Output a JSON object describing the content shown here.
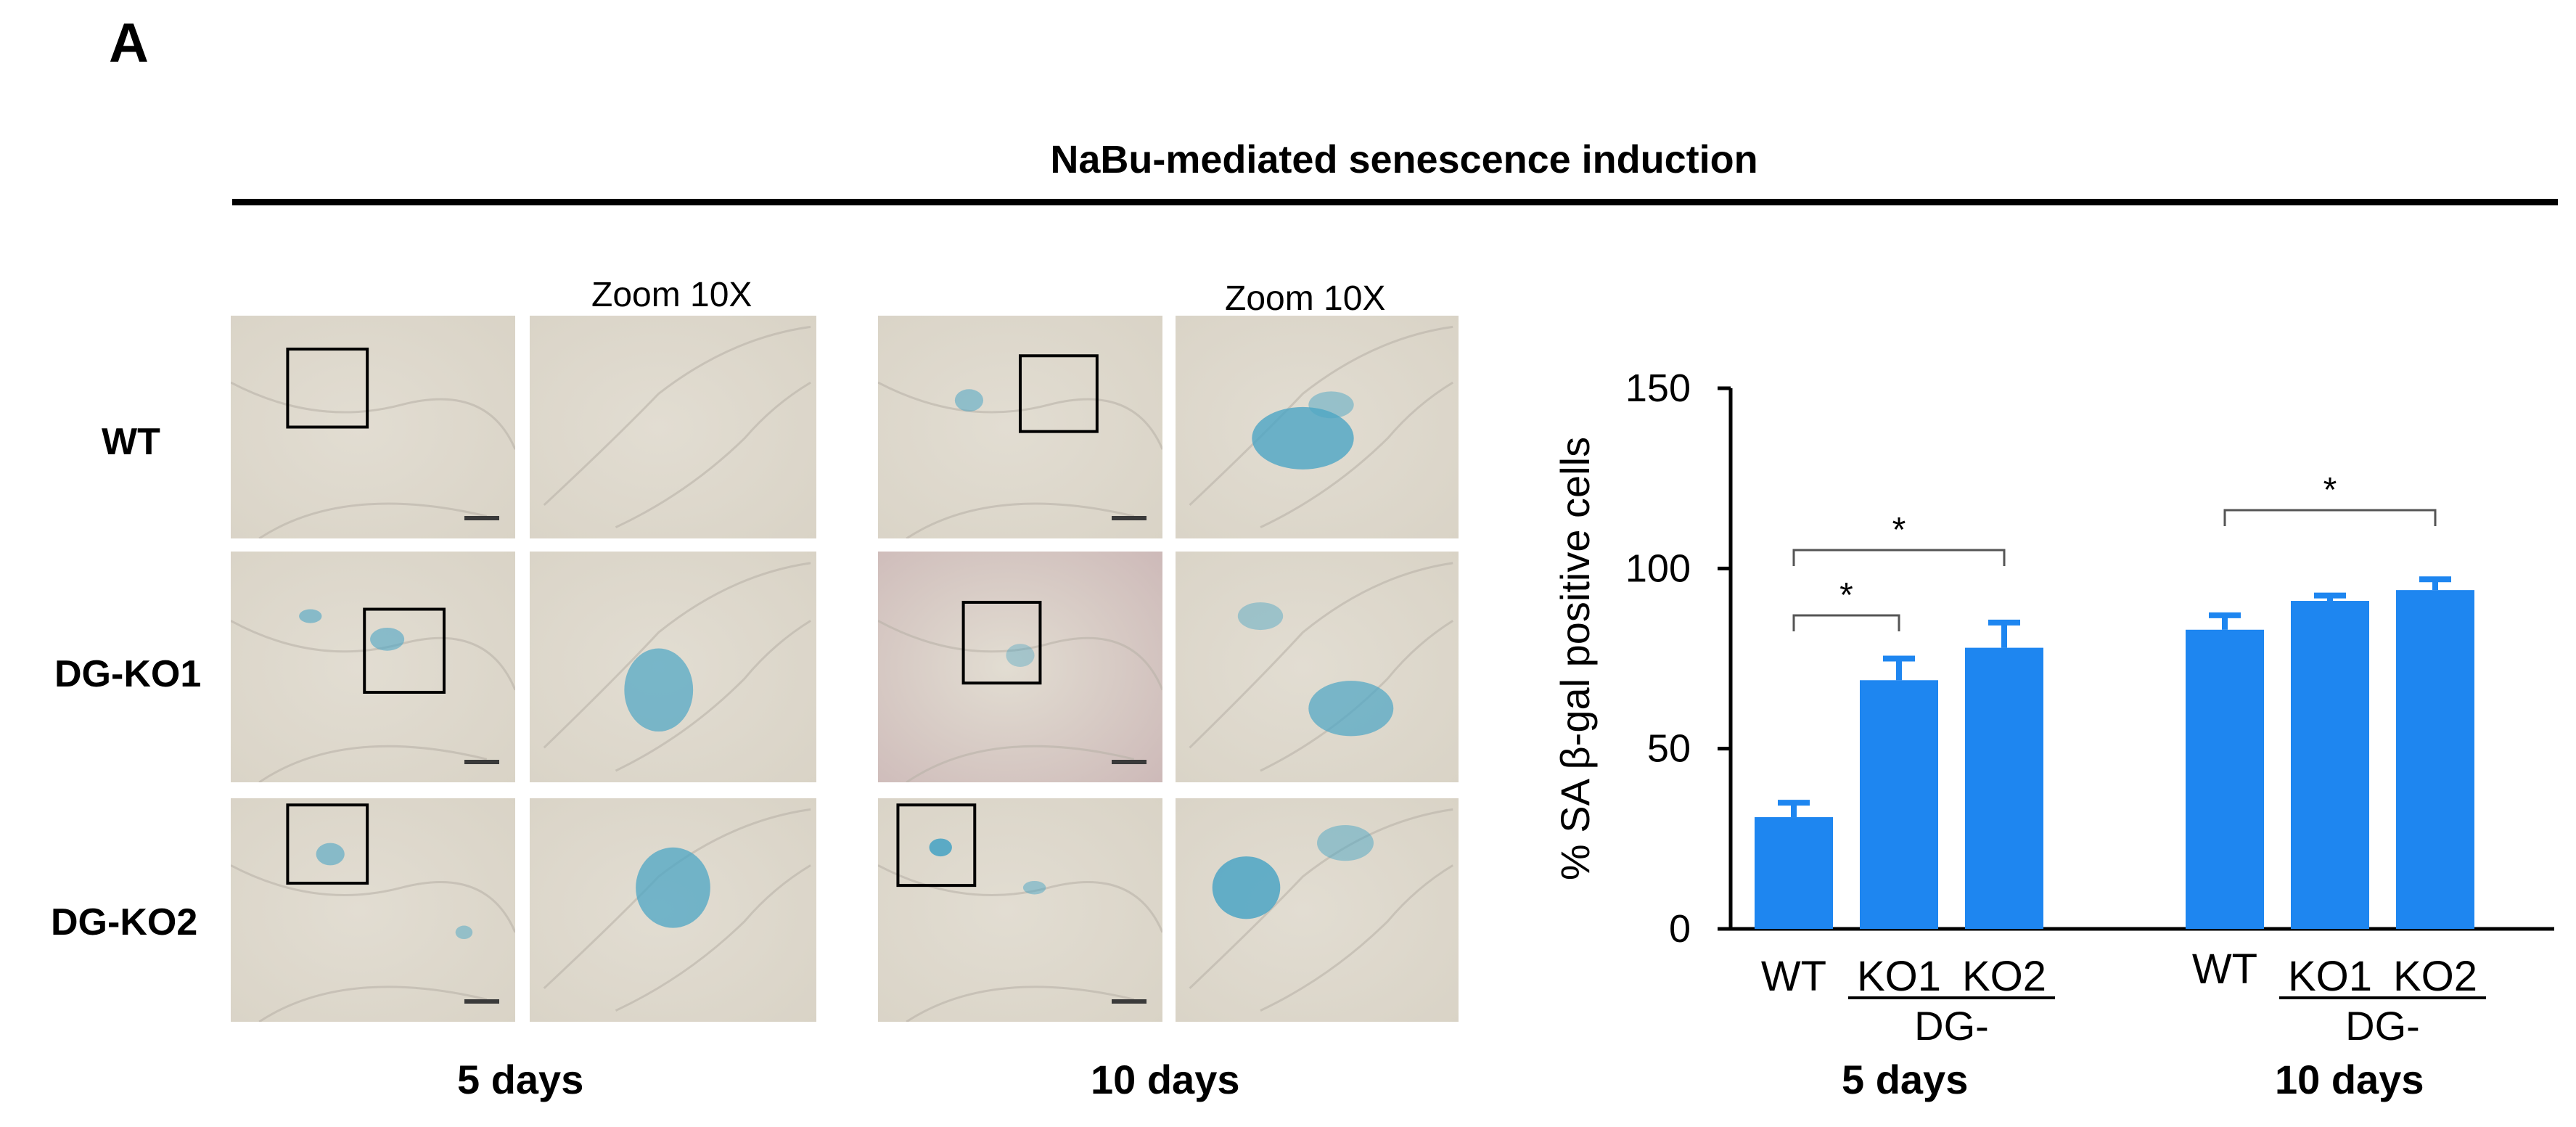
{
  "figure": {
    "panel_label": "A",
    "title": "NaBu-mediated senescence induction",
    "row_labels": [
      "WT",
      "DG-KO1",
      "DG-KO2"
    ],
    "zoom_labels": [
      "Zoom 10X",
      "Zoom 10X"
    ],
    "time_labels": [
      "5 days",
      "10 days",
      "5 days",
      "10 days"
    ]
  },
  "colors": {
    "bar": "#1E86F0",
    "micrograph_bg": "#D9D3C6",
    "stain": "#4CA5C4",
    "frame": "#000000"
  },
  "chart_data": {
    "type": "bar",
    "ylabel": "% SA β-gal positive cells",
    "ylim": [
      0,
      150
    ],
    "yticks": [
      0,
      50,
      100,
      150
    ],
    "groups": [
      {
        "name": "5 days",
        "categories": [
          "WT",
          "KO1",
          "KO2"
        ],
        "subgroup_label": "DG-",
        "values": [
          31,
          69,
          78
        ],
        "errors": [
          4,
          6,
          7
        ]
      },
      {
        "name": "10 days",
        "categories": [
          "WT",
          "KO1",
          "KO2"
        ],
        "subgroup_label": "DG-",
        "values": [
          83,
          91,
          94
        ],
        "errors": [
          4,
          1.5,
          3
        ]
      }
    ],
    "significance": [
      {
        "group": 0,
        "from": "WT",
        "to": "KO1",
        "label": "*"
      },
      {
        "group": 0,
        "from": "WT",
        "to": "KO2",
        "label": "*"
      },
      {
        "group": 1,
        "from": "WT",
        "to": "KO2",
        "label": "*"
      }
    ]
  }
}
